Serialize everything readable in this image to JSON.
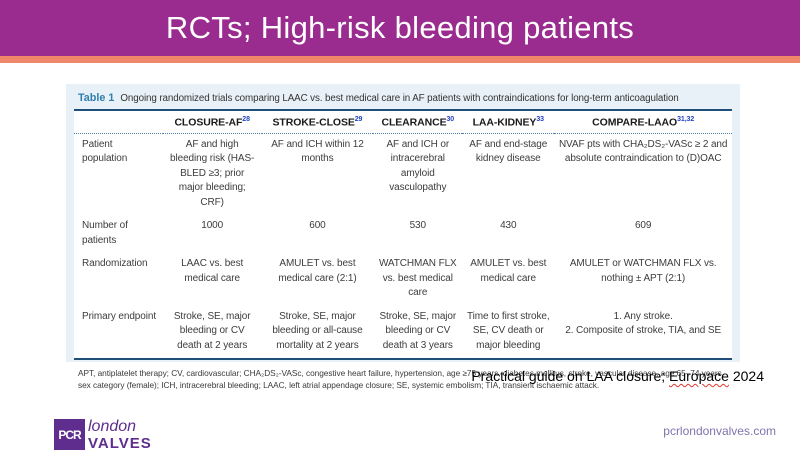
{
  "theme": {
    "header_purple": "#9B2C8F",
    "accent_orange": "#F0876B",
    "card_blue": "#E9F1F8",
    "table_navy": "#1F4E79",
    "caption_teal": "#2E7FAC",
    "sup_blue": "#2041C4",
    "logo_purple": "#5E2D8E",
    "website_purple": "#8273AE"
  },
  "slide": {
    "title": "RCTs; High-risk bleeding patients"
  },
  "table": {
    "caption_label": "Table 1",
    "caption_text": "Ongoing randomized trials comparing LAAC vs. best medical care in AF patients with contraindications for long-term anticoagulation",
    "columns": [
      {
        "label": "CLOSURE-AF",
        "sup": "28"
      },
      {
        "label": "STROKE-CLOSE",
        "sup": "29"
      },
      {
        "label": "CLEARANCE",
        "sup": "30"
      },
      {
        "label": "LAA-KIDNEY",
        "sup": "33"
      },
      {
        "label": "COMPARE-LAAO",
        "sup": "31,32"
      }
    ],
    "rows": [
      {
        "label": "Patient population",
        "cells": [
          "AF and high bleeding risk (HAS-BLED ≥3; prior major bleeding; CRF)",
          "AF and ICH within 12 months",
          "AF and ICH or intracerebral amyloid vasculopathy",
          "AF and end-stage kidney disease",
          "NVAF pts with CHA₂DS₂-VASc ≥ 2 and absolute contraindication to (D)OAC"
        ]
      },
      {
        "label": "Number of patients",
        "cells": [
          "1000",
          "600",
          "530",
          "430",
          "609"
        ]
      },
      {
        "label": "Randomization",
        "cells": [
          "LAAC vs. best medical care",
          "AMULET vs. best medical care (2:1)",
          "WATCHMAN FLX vs. best medical care",
          "AMULET vs. best medical care",
          "AMULET or WATCHMAN FLX vs. nothing ± APT (2:1)"
        ]
      },
      {
        "label": "Primary endpoint",
        "cells": [
          "Stroke, SE, major bleeding or CV death at 2 years",
          "Stroke, SE, major bleeding or all-cause mortality at 2 years",
          "Stroke, SE, major bleeding or CV death at 3 years",
          "Time to first stroke, SE, CV death or major bleeding",
          "1. Any stroke.\n2. Composite of stroke, TIA, and SE"
        ]
      }
    ],
    "footnote": "APT, antiplatelet therapy; CV, cardiovascular; CHA₂DS₂-VASc, congestive heart failure, hypertension, age ≥75 years, diabetes mellitus, stroke, vascular disease, age 65–74 years, sex category (female); ICH, intracerebral bleeding; LAAC, left atrial appendage closure; SE, systemic embolism; TIA, transient ischaemic attack."
  },
  "citation": {
    "prefix": "Practical guide on LAA closure; ",
    "journal": "Europace",
    "suffix": " 2024"
  },
  "footer": {
    "logo_acronym": "PCR",
    "logo_line1": "london",
    "logo_line2": "VALVES",
    "website": "pcrlondonvalves.com"
  }
}
